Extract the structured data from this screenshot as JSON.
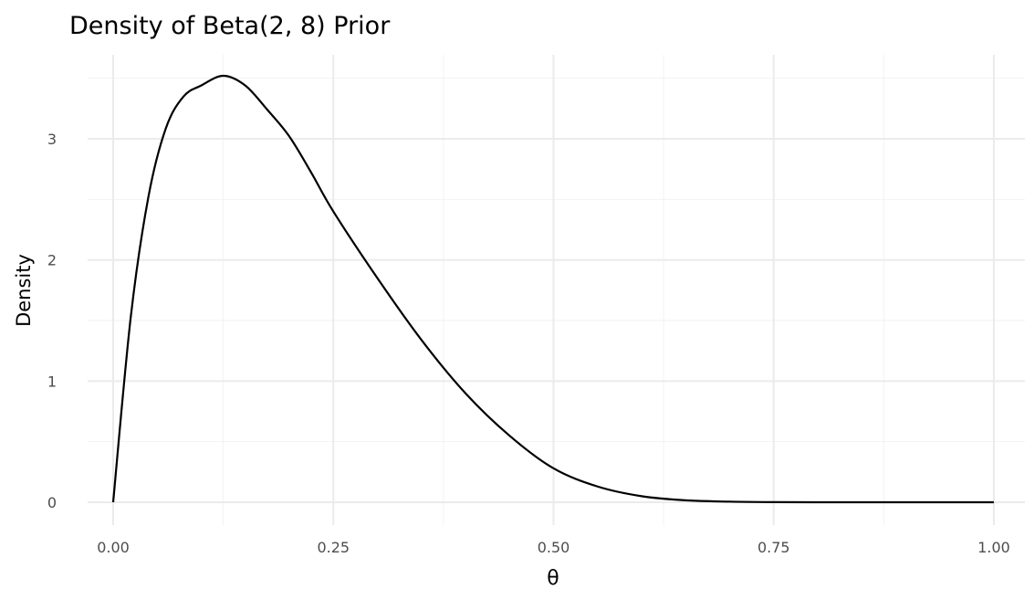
{
  "chart_data": {
    "type": "line",
    "title": "Density of Beta(2, 8) Prior",
    "xlabel": "θ",
    "ylabel": "Density",
    "xlim": [
      0,
      1
    ],
    "ylim": [
      0,
      3.52
    ],
    "x_ticks": [
      0,
      0.25,
      0.5,
      0.75,
      1.0
    ],
    "x_tick_labels": [
      "0.00",
      "0.25",
      "0.50",
      "0.75",
      "1.00"
    ],
    "y_ticks": [
      0,
      1,
      2,
      3
    ],
    "y_tick_labels": [
      "0",
      "1",
      "2",
      "3"
    ],
    "grid": true,
    "legend": "none",
    "series": [
      {
        "color": "#000000",
        "x": [
          0,
          0.02,
          0.04,
          0.06,
          0.08,
          0.1,
          0.125,
          0.15,
          0.175,
          0.2,
          0.225,
          0.25,
          0.3,
          0.35,
          0.4,
          0.45,
          0.5,
          0.55,
          0.6,
          0.65,
          0.7,
          0.75,
          0.8,
          0.85,
          0.9,
          0.95,
          1.0
        ],
        "y": [
          0,
          1.53,
          2.52,
          3.09,
          3.35,
          3.44,
          3.52,
          3.44,
          3.24,
          3.02,
          2.72,
          2.4,
          1.85,
          1.34,
          0.9,
          0.55,
          0.28,
          0.13,
          0.05,
          0.016,
          0.005,
          0.001,
          0.0,
          0.0,
          0.0,
          0.0,
          0.0
        ]
      }
    ]
  }
}
